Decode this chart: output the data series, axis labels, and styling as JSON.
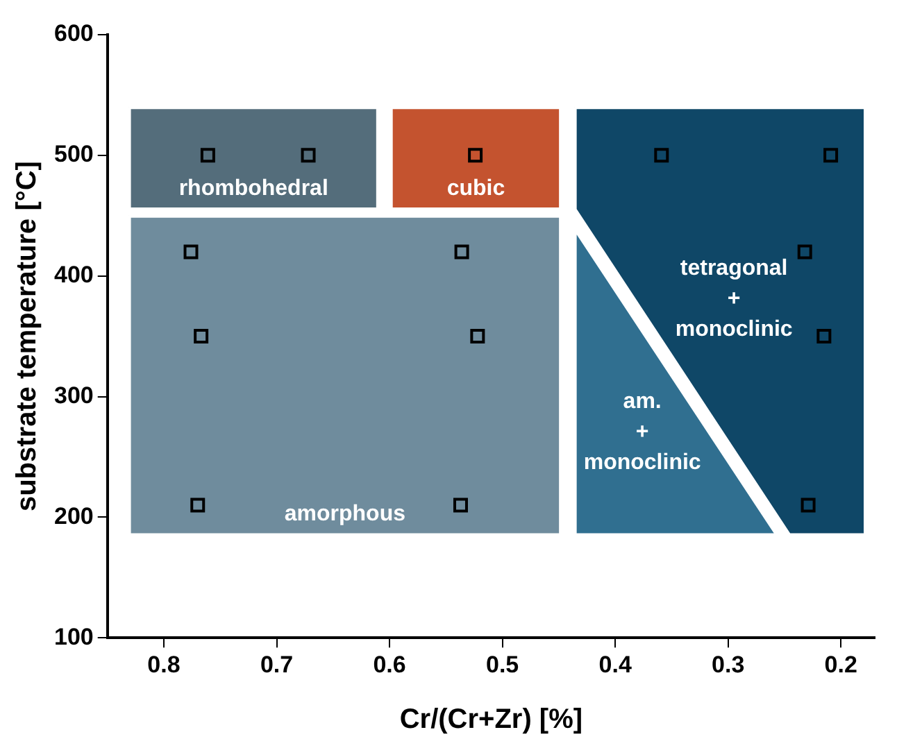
{
  "chart_data": {
    "type": "scatter",
    "xlabel": "Cr/(Cr+Zr) [%]",
    "ylabel": "substrate temperature [°C]",
    "xlim": [
      0.85,
      0.17
    ],
    "xticks": [
      0.8,
      0.7,
      0.6,
      0.5,
      0.4,
      0.3,
      0.2
    ],
    "ylim": [
      100,
      600
    ],
    "yticks": [
      100,
      200,
      300,
      400,
      500,
      600
    ],
    "grid": false,
    "legend": false,
    "series": [
      {
        "type": "area",
        "name": "rhombohedral",
        "color": "#546d7b",
        "x": [
          0.831,
          0.61,
          0.61,
          0.831
        ],
        "values": [
          540,
          540,
          455,
          455
        ]
      },
      {
        "type": "area",
        "name": "cubic",
        "color": "#c4532f",
        "x": [
          0.599,
          0.448,
          0.448,
          0.599
        ],
        "values": [
          540,
          540,
          455,
          455
        ]
      },
      {
        "type": "area",
        "name": "amorphous",
        "color": "#6f8c9d",
        "x": [
          0.831,
          0.448,
          0.448,
          0.831
        ],
        "values": [
          450,
          450,
          185,
          185
        ]
      },
      {
        "type": "area",
        "name": "tetragonal\n+\nmonoclinic",
        "color": "#0f4767",
        "x": [
          0.436,
          0.178,
          0.178,
          0.246,
          0.436
        ],
        "values": [
          540,
          540,
          185,
          185,
          455
        ]
      },
      {
        "type": "area",
        "name": "am.\n+\nmonoclinic",
        "color": "#306f90",
        "x": [
          0.436,
          0.436,
          0.256
        ],
        "values": [
          440,
          185,
          185
        ]
      },
      {
        "type": "scatter",
        "color": "#000000",
        "marker": "square",
        "x": [
          0.761,
          0.672,
          0.524,
          0.776,
          0.767,
          0.77,
          0.536,
          0.522,
          0.537,
          0.359,
          0.209,
          0.232,
          0.215,
          0.229
        ],
        "values": [
          500,
          500,
          500,
          420,
          350,
          210,
          420,
          350,
          210,
          500,
          500,
          420,
          350,
          210
        ]
      }
    ]
  }
}
